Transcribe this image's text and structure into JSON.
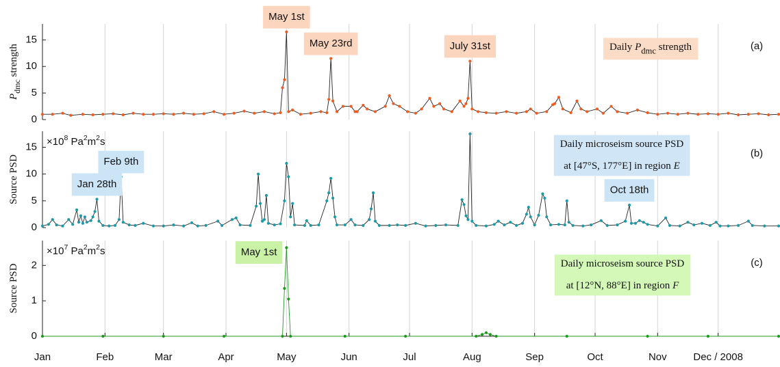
{
  "chart_data": [
    {
      "type": "line",
      "ylabel": [
        {
          "text": "P",
          "style": "italic"
        },
        {
          "text": "dmc",
          "style": "sub"
        },
        {
          "text": " strength"
        }
      ],
      "panel_label": "(a)",
      "info_box": {
        "color": "#fbdcc6",
        "lines": [
          [
            {
              "text": "Daily "
            },
            {
              "text": "P",
              "style": "italic"
            },
            {
              "text": "dmc",
              "style": "sub"
            },
            {
              "text": " strength"
            }
          ]
        ]
      },
      "annotations": [
        {
          "text": "May 1st",
          "x": 121,
          "color": "#fbd5bd"
        },
        {
          "text": "May 23rd",
          "x": 143,
          "color": "#fbd5bd"
        },
        {
          "text": "July 31st",
          "x": 212,
          "color": "#fbd5bd"
        }
      ],
      "xlim": [
        0,
        365
      ],
      "ylim": [
        0,
        18
      ],
      "yticks": [
        0,
        5,
        10,
        15
      ],
      "grid": true,
      "line_color": "#222222",
      "x": [
        0,
        5,
        10,
        14,
        20,
        25,
        30,
        35,
        40,
        45,
        50,
        55,
        60,
        65,
        70,
        75,
        80,
        85,
        90,
        95,
        100,
        105,
        110,
        115,
        118,
        119,
        120,
        121,
        122,
        124,
        128,
        133,
        138,
        141,
        142,
        143,
        144,
        146,
        149,
        153,
        155,
        156,
        159,
        161,
        165,
        170,
        172,
        174,
        177,
        181,
        185,
        188,
        192,
        194,
        197,
        199,
        203,
        207,
        209,
        210,
        211,
        212,
        213,
        216,
        220,
        225,
        230,
        235,
        240,
        242,
        245,
        250,
        253,
        254,
        256,
        258,
        262,
        265,
        267,
        270,
        275,
        278,
        282,
        285,
        290,
        295,
        300,
        305,
        310,
        315,
        320,
        325,
        330,
        335,
        340,
        345,
        350,
        355,
        360,
        365
      ],
      "series": [
        {
          "color": "#f05a1e",
          "values": [
            1,
            1,
            1.2,
            0.8,
            1,
            0.9,
            1,
            1.1,
            0.9,
            1.2,
            1,
            1,
            1.1,
            1,
            1.2,
            1,
            1.1,
            1.5,
            1,
            1.2,
            1.6,
            1.2,
            1.5,
            1.1,
            1.3,
            6,
            7.5,
            16.5,
            1.5,
            1.8,
            1,
            1.2,
            1.5,
            1.3,
            3.8,
            11.5,
            3.5,
            1.5,
            2.5,
            2.5,
            1.5,
            1.5,
            2.7,
            2,
            1.5,
            2.5,
            4.5,
            3,
            2.5,
            1.5,
            1.2,
            2,
            4,
            2.5,
            3,
            2,
            1.5,
            3.5,
            2.5,
            3,
            4,
            11,
            2,
            1.5,
            1.3,
            1.2,
            1.5,
            1.2,
            1.5,
            2,
            1.2,
            1.5,
            2.8,
            3,
            4.2,
            2,
            1.3,
            3.5,
            2,
            1.5,
            2,
            1.2,
            2.5,
            1.5,
            1.2,
            1.8,
            1.3,
            1,
            1.2,
            1,
            1.2,
            1,
            1.1,
            1,
            1.2,
            0.9,
            1,
            1.1,
            0.9,
            1
          ]
        }
      ]
    },
    {
      "type": "line",
      "ylabel": [
        {
          "text": "Source PSD"
        }
      ],
      "unit_label": [
        {
          "text": "×10"
        },
        {
          "text": "8",
          "style": "sup"
        },
        {
          "text": " Pa"
        },
        {
          "text": "2",
          "style": "sup"
        },
        {
          "text": "m"
        },
        {
          "text": "2",
          "style": "sup"
        },
        {
          "text": "s"
        }
      ],
      "panel_label": "(b)",
      "info_box": {
        "color": "#d0e6f7",
        "lines": [
          [
            {
              "text": "Daily microseism source PSD"
            }
          ],
          [
            {
              "text": "at [47°S, 177°E] in region "
            },
            {
              "text": "E",
              "style": "italic"
            }
          ]
        ]
      },
      "annotations": [
        {
          "text": "Jan 28th",
          "x": 27,
          "color": "#cce5f6"
        },
        {
          "text": "Feb 9th",
          "x": 39,
          "color": "#cce5f6"
        },
        {
          "text": "Oct 18th",
          "x": 291,
          "color": "#cce5f6"
        }
      ],
      "xlim": [
        0,
        365
      ],
      "ylim": [
        0,
        18
      ],
      "yticks": [
        0,
        5,
        10,
        15
      ],
      "grid": true,
      "line_color": "#222222",
      "x": [
        0,
        3,
        5,
        7,
        10,
        13,
        15,
        17,
        18,
        19,
        20,
        21,
        22,
        24,
        25,
        26,
        27,
        28,
        30,
        33,
        36,
        38,
        39,
        40,
        43,
        46,
        50,
        55,
        60,
        65,
        70,
        74,
        77,
        81,
        87,
        89,
        94,
        96,
        98,
        103,
        106,
        107,
        108,
        109,
        110,
        111,
        112,
        115,
        118,
        120,
        121,
        122,
        123,
        124,
        125,
        130,
        131,
        133,
        137,
        141,
        142,
        143,
        144,
        145,
        146,
        150,
        153,
        155,
        159,
        162,
        163,
        164,
        165,
        167,
        172,
        176,
        180,
        185,
        190,
        195,
        200,
        206,
        208,
        209,
        210,
        211,
        212,
        213,
        215,
        220,
        224,
        226,
        229,
        232,
        235,
        238,
        240,
        241,
        242,
        244,
        246,
        248,
        249,
        250,
        252,
        256,
        259,
        260,
        261,
        263,
        268,
        272,
        277,
        280,
        285,
        289,
        291,
        292,
        294,
        296,
        298,
        300,
        305,
        309,
        311,
        316,
        320,
        323,
        327,
        331,
        334,
        336,
        340,
        345,
        350,
        352,
        358,
        365
      ],
      "series": [
        {
          "color": "#1b9aa8",
          "values": [
            0.3,
            0.6,
            1.5,
            0.5,
            0.3,
            1.5,
            0.6,
            3.3,
            1,
            2.2,
            0.8,
            2,
            1,
            1.3,
            2,
            3,
            5.3,
            1.2,
            0.4,
            0.3,
            0.4,
            1.5,
            9.5,
            1,
            0.5,
            0.4,
            0.8,
            0.3,
            0.3,
            0.5,
            0.3,
            0.9,
            0.3,
            0.4,
            1.2,
            0.4,
            1.5,
            1.8,
            0.5,
            0.4,
            4,
            10,
            4.5,
            1.2,
            1.5,
            6,
            0.8,
            0.5,
            0.7,
            5,
            12,
            9.5,
            2,
            4.5,
            0.5,
            0.4,
            1.3,
            0.4,
            0.5,
            5,
            6.5,
            9.2,
            5.5,
            2,
            0.5,
            0.5,
            1.5,
            0.5,
            0.4,
            1.5,
            3.5,
            6.5,
            1.2,
            0.4,
            0.4,
            0.5,
            0.4,
            0.8,
            0.3,
            0.4,
            0.5,
            0.4,
            5.2,
            4.3,
            2.2,
            1.5,
            17.5,
            1.2,
            0.4,
            0.3,
            0.6,
            1.2,
            0.5,
            1,
            0.4,
            0.8,
            2.5,
            3.8,
            2,
            0.5,
            2.3,
            6.3,
            5.5,
            2,
            0.5,
            0.6,
            0.5,
            5,
            1,
            0.4,
            0.3,
            0.5,
            1.3,
            0.4,
            0.5,
            1.2,
            4.2,
            0.8,
            0.8,
            1.3,
            1,
            0.6,
            0.3,
            1.8,
            0.4,
            0.3,
            1,
            0.5,
            0.8,
            0.4,
            1,
            0.3,
            0.3,
            0.4,
            1.2,
            0.4,
            0.3,
            0.3
          ]
        }
      ]
    },
    {
      "type": "line",
      "ylabel": [
        {
          "text": "Source PSD"
        }
      ],
      "unit_label": [
        {
          "text": "×10"
        },
        {
          "text": "7",
          "style": "sup"
        },
        {
          "text": " Pa"
        },
        {
          "text": "2",
          "style": "sup"
        },
        {
          "text": "m"
        },
        {
          "text": "2",
          "style": "sup"
        },
        {
          "text": "s"
        }
      ],
      "panel_label": "(c)",
      "info_box": {
        "color": "#d3f8b8",
        "lines": [
          [
            {
              "text": "Daily microseism source PSD"
            }
          ],
          [
            {
              "text": "at [12°N, 88°E] in region "
            },
            {
              "text": "F",
              "style": "italic"
            }
          ]
        ]
      },
      "annotations": [
        {
          "text": "May 1st",
          "x": 121,
          "color": "#c9f2a6"
        }
      ],
      "xlim": [
        0,
        365
      ],
      "ylim": [
        0,
        2.7
      ],
      "yticks": [
        0,
        1,
        2
      ],
      "grid": true,
      "line_color": "#1f9a1f",
      "xticks": [
        {
          "value": 0,
          "label": "Jan"
        },
        {
          "value": 31,
          "label": "Feb"
        },
        {
          "value": 60,
          "label": "Mar"
        },
        {
          "value": 91,
          "label": "Apr"
        },
        {
          "value": 121,
          "label": "May"
        },
        {
          "value": 152,
          "label": "Jun"
        },
        {
          "value": 182,
          "label": "Jul"
        },
        {
          "value": 213,
          "label": "Aug"
        },
        {
          "value": 244,
          "label": "Sep"
        },
        {
          "value": 274,
          "label": "Oct"
        },
        {
          "value": 305,
          "label": "Nov"
        },
        {
          "value": 335,
          "label": "Dec / 2008"
        }
      ],
      "x": [
        0,
        30,
        60,
        90,
        119,
        120,
        121,
        122,
        123,
        150,
        180,
        215,
        218,
        220,
        222,
        225,
        260,
        300,
        330,
        365
      ],
      "series": [
        {
          "color": "#1f9a1f",
          "values": [
            0,
            0,
            0,
            0,
            0,
            1.35,
            2.5,
            1.05,
            0,
            0,
            0,
            0,
            0.05,
            0.1,
            0.05,
            0,
            0,
            0,
            0,
            0
          ]
        }
      ]
    }
  ]
}
